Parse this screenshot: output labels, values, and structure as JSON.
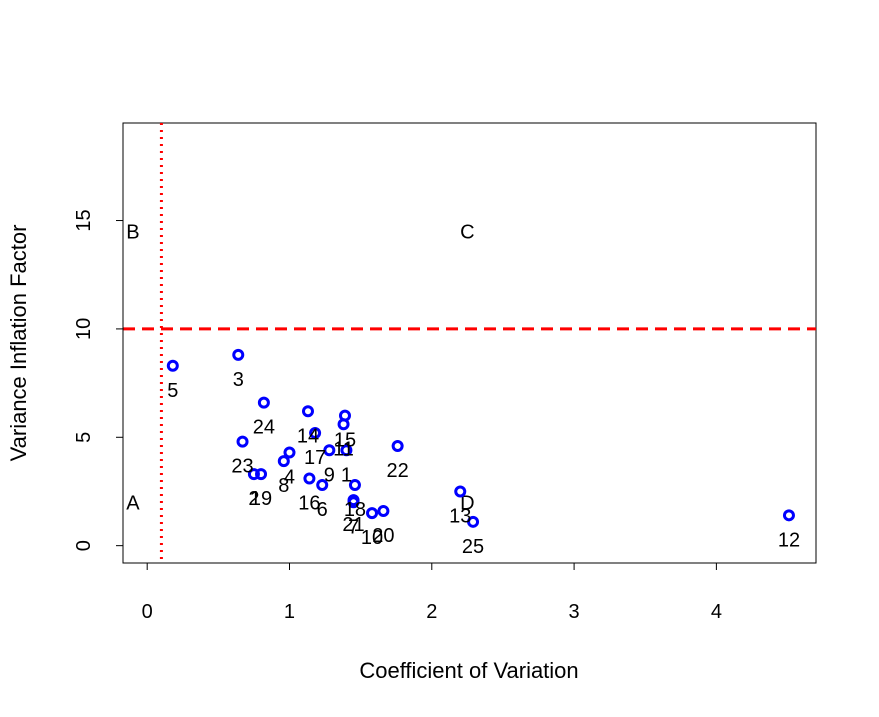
{
  "chart_data": {
    "type": "scatter",
    "title": "",
    "xlabel": "Coefficient of Variation",
    "ylabel": "Variance Inflation Factor",
    "xlim": [
      -0.17,
      4.7
    ],
    "ylim": [
      -0.8,
      19.5
    ],
    "xticks": [
      0,
      1,
      2,
      3,
      4
    ],
    "yticks": [
      0,
      5,
      10,
      15
    ],
    "grid": false,
    "point_color": "#0000ff",
    "reference_color": "#ff0000",
    "vline": {
      "x": 0.1,
      "style": "dotted"
    },
    "hline": {
      "y": 10,
      "style": "dashed"
    },
    "regions": [
      {
        "label": "A",
        "x": -0.1,
        "y": 2.0
      },
      {
        "label": "B",
        "x": -0.1,
        "y": 14.5
      },
      {
        "label": "C",
        "x": 2.25,
        "y": 14.5
      },
      {
        "label": "D",
        "x": 2.25,
        "y": 2.0
      }
    ],
    "points": [
      {
        "label": "1",
        "x": 1.4,
        "y": 4.4
      },
      {
        "label": "2",
        "x": 0.75,
        "y": 3.3
      },
      {
        "label": "3",
        "x": 0.64,
        "y": 8.8
      },
      {
        "label": "4",
        "x": 1.0,
        "y": 4.3
      },
      {
        "label": "5",
        "x": 0.18,
        "y": 8.3
      },
      {
        "label": "6",
        "x": 1.23,
        "y": 2.8
      },
      {
        "label": "7",
        "x": 1.45,
        "y": 2.0
      },
      {
        "label": "8",
        "x": 0.96,
        "y": 3.9
      },
      {
        "label": "9",
        "x": 1.28,
        "y": 4.4
      },
      {
        "label": "10",
        "x": 1.58,
        "y": 1.5
      },
      {
        "label": "11",
        "x": 1.38,
        "y": 5.6
      },
      {
        "label": "12",
        "x": 4.51,
        "y": 1.4
      },
      {
        "label": "13",
        "x": 2.2,
        "y": 2.5
      },
      {
        "label": "14",
        "x": 1.13,
        "y": 6.2
      },
      {
        "label": "15",
        "x": 1.39,
        "y": 6.0
      },
      {
        "label": "16",
        "x": 1.14,
        "y": 3.1
      },
      {
        "label": "17",
        "x": 1.18,
        "y": 5.2
      },
      {
        "label": "18",
        "x": 1.46,
        "y": 2.8
      },
      {
        "label": "19",
        "x": 0.8,
        "y": 3.3
      },
      {
        "label": "20",
        "x": 1.66,
        "y": 1.6
      },
      {
        "label": "21",
        "x": 1.45,
        "y": 2.1
      },
      {
        "label": "22",
        "x": 1.76,
        "y": 4.6
      },
      {
        "label": "23",
        "x": 0.67,
        "y": 4.8
      },
      {
        "label": "24",
        "x": 0.82,
        "y": 6.6
      },
      {
        "label": "25",
        "x": 2.29,
        "y": 1.1
      }
    ]
  }
}
